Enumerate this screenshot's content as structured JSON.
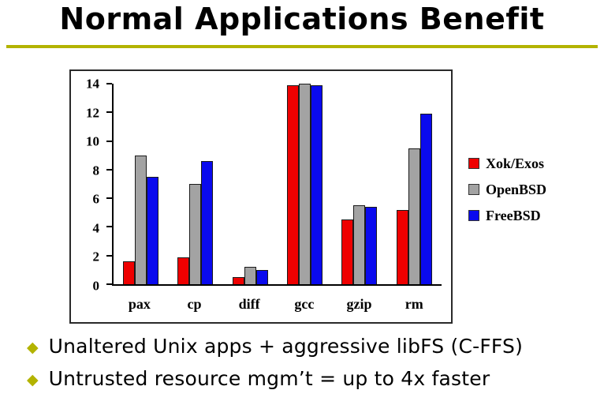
{
  "slide": {
    "title": "Normal Applications Benefit",
    "accent_color": "#b3b300",
    "bullet_glyph": "◆",
    "bullets": [
      "Unaltered Unix apps + aggressive libFS (C-FFS)",
      "Untrusted resource mgm’t = up to 4x faster"
    ]
  },
  "chart_data": {
    "type": "bar",
    "title": "",
    "xlabel": "",
    "ylabel": "",
    "categories": [
      "pax",
      "cp",
      "diff",
      "gcc",
      "gzip",
      "rm"
    ],
    "series": [
      {
        "name": "Xok/Exos",
        "color": "#ee0000",
        "values": [
          1.6,
          1.9,
          0.5,
          13.9,
          4.5,
          5.2
        ]
      },
      {
        "name": "OpenBSD",
        "color": "#a3a3a3",
        "values": [
          9.0,
          7.0,
          1.2,
          14.0,
          5.5,
          9.5
        ]
      },
      {
        "name": "FreeBSD",
        "color": "#0a0aee",
        "values": [
          7.5,
          8.6,
          1.0,
          13.9,
          5.4,
          11.9
        ]
      }
    ],
    "ylim": [
      0,
      14
    ],
    "yticks": [
      0,
      2,
      4,
      6,
      8,
      10,
      12,
      14
    ],
    "grid": false,
    "legend_position": "right"
  }
}
